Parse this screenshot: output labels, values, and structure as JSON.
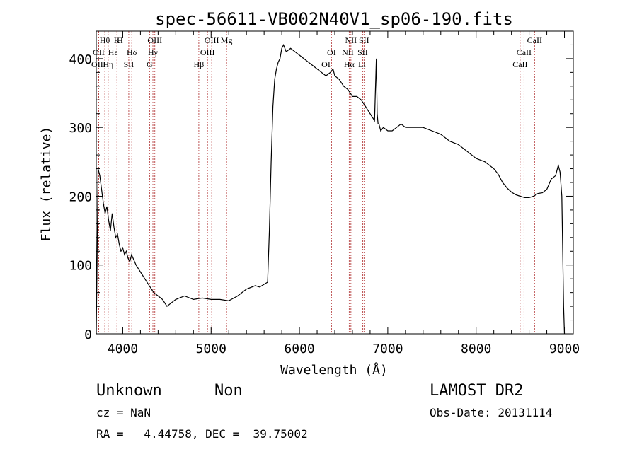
{
  "chart_data": {
    "type": "line",
    "title": "spec-56611-VB002N40V1_sp06-190.fits",
    "xlabel": "Wavelength (Å)",
    "ylabel": "Flux (relative)",
    "xlim": [
      3700,
      9100
    ],
    "ylim": [
      0,
      440
    ],
    "xticks": [
      4000,
      5000,
      6000,
      7000,
      8000,
      9000
    ],
    "yticks": [
      0,
      100,
      200,
      300,
      400
    ],
    "grid": false,
    "series": [
      {
        "x": [
          3700,
          3720,
          3740,
          3760,
          3780,
          3800,
          3820,
          3840,
          3860,
          3880,
          3900,
          3920,
          3940,
          3960,
          3980,
          4000,
          4020,
          4040,
          4060,
          4080,
          4100,
          4150,
          4200,
          4250,
          4300,
          4350,
          4400,
          4450,
          4500,
          4550,
          4600,
          4700,
          4800,
          4900,
          5000,
          5100,
          5200,
          5300,
          5400,
          5500,
          5550,
          5600,
          5640,
          5660,
          5680,
          5700,
          5720,
          5740,
          5760,
          5780,
          5800,
          5820,
          5850,
          5900,
          5950,
          6000,
          6050,
          6100,
          6150,
          6200,
          6250,
          6300,
          6350,
          6380,
          6400,
          6450,
          6500,
          6550,
          6600,
          6650,
          6700,
          6750,
          6800,
          6850,
          6870,
          6880,
          6890,
          6900,
          6920,
          6950,
          7000,
          7050,
          7100,
          7150,
          7200,
          7300,
          7400,
          7500,
          7600,
          7700,
          7800,
          7900,
          8000,
          8100,
          8200,
          8250,
          8300,
          8350,
          8400,
          8450,
          8500,
          8550,
          8600,
          8650,
          8700,
          8750,
          8800,
          8850,
          8900,
          8930,
          8950,
          8970,
          8990,
          9000
        ],
        "values": [
          0,
          240,
          230,
          210,
          190,
          175,
          185,
          165,
          150,
          175,
          155,
          140,
          145,
          130,
          120,
          125,
          115,
          120,
          110,
          105,
          115,
          100,
          90,
          80,
          70,
          60,
          55,
          50,
          40,
          45,
          50,
          55,
          50,
          52,
          50,
          50,
          48,
          55,
          65,
          70,
          68,
          72,
          75,
          150,
          250,
          330,
          370,
          385,
          395,
          400,
          415,
          420,
          410,
          415,
          410,
          405,
          400,
          395,
          390,
          385,
          380,
          375,
          380,
          385,
          375,
          370,
          360,
          355,
          345,
          345,
          340,
          330,
          320,
          310,
          400,
          320,
          305,
          305,
          295,
          300,
          295,
          295,
          300,
          305,
          300,
          300,
          300,
          295,
          290,
          280,
          275,
          265,
          255,
          250,
          240,
          232,
          220,
          212,
          206,
          202,
          200,
          198,
          198,
          200,
          204,
          205,
          210,
          225,
          230,
          245,
          235,
          200,
          40,
          0
        ]
      }
    ],
    "lines": [
      {
        "label": "Hθ",
        "x": 3797
      },
      {
        "label": "OII",
        "x": 3727
      },
      {
        "label": "OIII",
        "x": 3727
      },
      {
        "label": "K",
        "x": 3934
      },
      {
        "label": "Hε",
        "x": 3889
      },
      {
        "label": "Hη",
        "x": 3835
      },
      {
        "label": "H",
        "x": 3968
      },
      {
        "label": "Hδ",
        "x": 4102
      },
      {
        "label": "SII",
        "x": 4068
      },
      {
        "label": "OIII",
        "x": 4363
      },
      {
        "label": "Hγ",
        "x": 4341
      },
      {
        "label": "G",
        "x": 4304
      },
      {
        "label": "OIII",
        "x": 5007
      },
      {
        "label": "OIII",
        "x": 4959
      },
      {
        "label": "Hβ",
        "x": 4861
      },
      {
        "label": "Mg",
        "x": 5175
      },
      {
        "label": "OI",
        "x": 6363
      },
      {
        "label": "OI",
        "x": 6300
      },
      {
        "label": "NII",
        "x": 6583
      },
      {
        "label": "SII",
        "x": 6716
      },
      {
        "label": "Hα",
        "x": 6563
      },
      {
        "label": "SII",
        "x": 6731
      },
      {
        "label": "NII",
        "x": 6548
      },
      {
        "label": "Li",
        "x": 6708
      },
      {
        "label": "CaII",
        "x": 8662
      },
      {
        "label": "CaII",
        "x": 8542
      },
      {
        "label": "CaII",
        "x": 8498
      }
    ]
  },
  "footer": {
    "class": "Unknown",
    "subclass": "Non",
    "survey": "LAMOST DR2",
    "cz": "cz = NaN",
    "obsdate": "Obs-Date: 20131114",
    "radec": "RA =   4.44758, DEC =  39.75002"
  },
  "colors": {
    "spectrum": "#000000",
    "line_marker": "#b03030"
  }
}
